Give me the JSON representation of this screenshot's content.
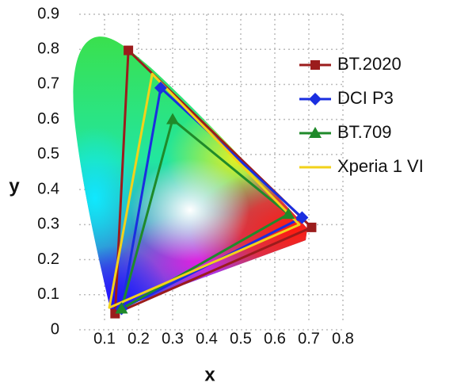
{
  "chart_data": {
    "type": "line",
    "x_label": "x",
    "y_label": "y",
    "xlim": [
      0,
      0.8
    ],
    "ylim": [
      0,
      0.9
    ],
    "xticks": [
      0.1,
      0.2,
      0.3,
      0.4,
      0.5,
      0.6,
      0.7,
      0.8
    ],
    "yticks": [
      0,
      0.1,
      0.2,
      0.3,
      0.4,
      0.5,
      0.6,
      0.7,
      0.8,
      0.9
    ],
    "grid": true,
    "legend": "right",
    "series": [
      {
        "name": "BT.2020",
        "color": "#9b1c1c",
        "marker": "square",
        "x": [
          0.708,
          0.17,
          0.131
        ],
        "y": [
          0.292,
          0.797,
          0.046
        ]
      },
      {
        "name": "DCI P3",
        "color": "#1a2ee0",
        "marker": "diamond",
        "x": [
          0.68,
          0.265,
          0.15
        ],
        "y": [
          0.32,
          0.69,
          0.06
        ]
      },
      {
        "name": "BT.709",
        "color": "#1f8a2a",
        "marker": "triangle",
        "x": [
          0.64,
          0.3,
          0.15
        ],
        "y": [
          0.33,
          0.6,
          0.06
        ]
      },
      {
        "name": "Xperia 1 VI",
        "color": "#f2d21a",
        "marker": null,
        "x": [
          0.672,
          0.24,
          0.114
        ],
        "y": [
          0.3,
          0.73,
          0.063
        ]
      }
    ]
  }
}
